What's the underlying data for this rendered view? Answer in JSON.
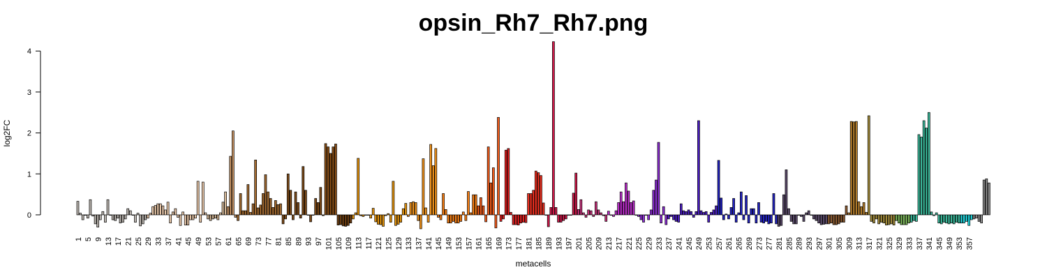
{
  "chart_data": {
    "type": "bar",
    "title": "opsin_Rh7_Rh7.png",
    "xlabel": "metacells",
    "ylabel": "log2FC",
    "ylim": [
      -0.35,
      4.25
    ],
    "yticks": [
      0,
      1,
      2,
      3,
      4
    ],
    "x_tick_labels": [
      "1",
      "5",
      "9",
      "13",
      "17",
      "21",
      "25",
      "29",
      "33",
      "37",
      "41",
      "45",
      "49",
      "53",
      "57",
      "61",
      "65",
      "69",
      "73",
      "77",
      "81",
      "85",
      "89",
      "93",
      "97",
      "101",
      "105",
      "109",
      "113",
      "117",
      "121",
      "125",
      "129",
      "133",
      "137",
      "141",
      "145",
      "149",
      "153",
      "157",
      "161",
      "165",
      "169",
      "173",
      "177",
      "181",
      "185",
      "189",
      "193",
      "197",
      "201",
      "205",
      "209",
      "213",
      "217",
      "221",
      "225",
      "229",
      "233",
      "237",
      "241",
      "245",
      "249",
      "253",
      "257",
      "261",
      "265",
      "269",
      "273",
      "277",
      "281",
      "285",
      "289",
      "293",
      "297",
      "301",
      "305",
      "309",
      "313",
      "317",
      "321",
      "325",
      "329",
      "333",
      "337",
      "341",
      "345",
      "349",
      "353",
      "357"
    ],
    "x_tick_step": 4,
    "values": [
      0.33,
      0.04,
      -0.12,
      0.0,
      -0.08,
      0.37,
      -0.03,
      -0.22,
      -0.3,
      -0.12,
      0.08,
      -0.18,
      0.37,
      0.0,
      -0.12,
      -0.14,
      -0.08,
      -0.2,
      -0.18,
      -0.1,
      0.15,
      0.1,
      0.0,
      -0.18,
      0.04,
      -0.27,
      -0.22,
      -0.12,
      -0.08,
      0.04,
      0.2,
      0.23,
      0.27,
      0.27,
      0.22,
      0.12,
      0.31,
      -0.2,
      0.07,
      0.15,
      -0.06,
      -0.26,
      0.07,
      -0.25,
      -0.25,
      -0.12,
      -0.12,
      -0.08,
      0.82,
      -0.18,
      0.8,
      0.05,
      -0.1,
      -0.14,
      -0.1,
      -0.08,
      -0.12,
      0.05,
      0.31,
      0.56,
      0.2,
      1.43,
      2.05,
      -0.06,
      -0.14,
      0.52,
      0.1,
      0.1,
      0.74,
      0.06,
      0.27,
      1.34,
      0.17,
      0.24,
      0.52,
      0.98,
      0.56,
      0.4,
      0.18,
      0.35,
      0.25,
      0.27,
      -0.22,
      -0.1,
      1.0,
      0.6,
      -0.12,
      0.56,
      0.3,
      -0.08,
      1.18,
      0.6,
      0.0,
      -0.17,
      0.0,
      0.4,
      0.3,
      0.67,
      -0.02,
      1.74,
      1.66,
      1.5,
      1.66,
      1.73,
      -0.25,
      -0.24,
      -0.27,
      -0.28,
      -0.26,
      -0.2,
      -0.1,
      0.05,
      1.38,
      -0.02,
      -0.04,
      0.0,
      0.0,
      -0.08,
      0.16,
      -0.17,
      -0.23,
      -0.24,
      -0.28,
      -0.02,
      0.03,
      -0.18,
      0.82,
      -0.26,
      -0.23,
      -0.18,
      0.15,
      0.28,
      -0.04,
      0.3,
      0.32,
      0.3,
      -0.14,
      -0.34,
      1.37,
      0.17,
      -0.18,
      1.72,
      1.2,
      1.62,
      -0.06,
      -0.12,
      0.52,
      0.13,
      -0.2,
      -0.2,
      -0.16,
      -0.2,
      -0.2,
      -0.16,
      0.07,
      -0.14,
      0.57,
      0.05,
      0.49,
      0.49,
      0.22,
      0.42,
      0.22,
      -0.17,
      1.66,
      0.78,
      1.15,
      -0.32,
      2.38,
      -0.16,
      -0.1,
      1.58,
      1.62,
      0.06,
      -0.24,
      -0.24,
      -0.25,
      -0.2,
      -0.18,
      -0.19,
      0.52,
      0.52,
      0.6,
      1.07,
      1.03,
      0.96,
      0.29,
      0.0,
      -0.29,
      0.18,
      4.23,
      0.18,
      -0.18,
      -0.18,
      -0.14,
      -0.1,
      0.0,
      0.0,
      0.53,
      1.02,
      0.13,
      0.37,
      0.05,
      -0.06,
      0.12,
      0.1,
      -0.04,
      0.32,
      0.12,
      0.05,
      -0.02,
      -0.16,
      0.09,
      0.0,
      -0.04,
      0.1,
      0.3,
      0.56,
      0.32,
      0.78,
      0.58,
      0.3,
      0.34,
      0.0,
      -0.04,
      -0.12,
      -0.18,
      0.0,
      -0.12,
      0.12,
      0.6,
      0.85,
      1.77,
      -0.2,
      0.2,
      -0.24,
      -0.1,
      -0.04,
      -0.12,
      -0.16,
      -0.18,
      0.27,
      0.1,
      0.08,
      0.12,
      0.08,
      -0.06,
      0.08,
      2.3,
      0.1,
      0.06,
      0.08,
      -0.18,
      0.06,
      0.12,
      0.22,
      1.33,
      0.41,
      -0.12,
      0.02,
      -0.1,
      0.18,
      0.4,
      -0.18,
      0.05,
      0.56,
      -0.12,
      0.47,
      -0.2,
      0.15,
      0.15,
      -0.2,
      0.3,
      -0.18,
      -0.2,
      -0.16,
      -0.22,
      -0.2,
      0.52,
      -0.22,
      -0.28,
      -0.26,
      0.49,
      1.1,
      0.15,
      -0.16,
      -0.22,
      -0.22,
      0.0,
      -0.04,
      -0.16,
      0.05,
      0.1,
      0.0,
      -0.1,
      -0.14,
      -0.2,
      -0.24,
      -0.23,
      -0.22,
      -0.22,
      -0.2,
      -0.24,
      -0.24,
      -0.22,
      -0.18,
      -0.18,
      0.22,
      0.05,
      2.28,
      2.27,
      2.28,
      0.32,
      0.2,
      0.3,
      0.06,
      2.42,
      -0.16,
      -0.2,
      -0.1,
      -0.22,
      -0.18,
      -0.2,
      -0.25,
      -0.24,
      -0.22,
      -0.25,
      -0.14,
      -0.2,
      -0.24,
      -0.24,
      -0.24,
      -0.2,
      -0.18,
      -0.14,
      -0.16,
      1.96,
      1.9,
      2.3,
      2.12,
      2.5,
      0.07,
      -0.02,
      0.05,
      -0.2,
      -0.22,
      -0.18,
      -0.2,
      -0.22,
      -0.2,
      -0.22,
      -0.18,
      -0.2,
      -0.2,
      -0.2,
      -0.16,
      -0.26,
      -0.12,
      -0.1,
      -0.08,
      -0.16,
      -0.2,
      0.85,
      0.88,
      0.78
    ],
    "color_groups": [
      {
        "start": 1,
        "end": 28,
        "color": "#b7b1ab"
      },
      {
        "start": 29,
        "end": 52,
        "color": "#e6c5a7"
      },
      {
        "start": 53,
        "end": 60,
        "color": "#d2b594"
      },
      {
        "start": 61,
        "end": 64,
        "color": "#c49264"
      },
      {
        "start": 65,
        "end": 82,
        "color": "#a0682e"
      },
      {
        "start": 83,
        "end": 99,
        "color": "#7c4a18"
      },
      {
        "start": 100,
        "end": 104,
        "color": "#8a4f16"
      },
      {
        "start": 105,
        "end": 110,
        "color": "#6a3c10"
      },
      {
        "start": 111,
        "end": 132,
        "color": "#e2920c"
      },
      {
        "start": 133,
        "end": 144,
        "color": "#f2931a"
      },
      {
        "start": 145,
        "end": 160,
        "color": "#f57d12"
      },
      {
        "start": 161,
        "end": 169,
        "color": "#f05a1a"
      },
      {
        "start": 170,
        "end": 180,
        "color": "#e02020"
      },
      {
        "start": 181,
        "end": 187,
        "color": "#f03020"
      },
      {
        "start": 188,
        "end": 200,
        "color": "#cc1848"
      },
      {
        "start": 201,
        "end": 212,
        "color": "#c23178"
      },
      {
        "start": 213,
        "end": 224,
        "color": "#b82cc8"
      },
      {
        "start": 225,
        "end": 236,
        "color": "#8a2cd2"
      },
      {
        "start": 237,
        "end": 256,
        "color": "#4a1dc0"
      },
      {
        "start": 257,
        "end": 280,
        "color": "#2222c0"
      },
      {
        "start": 281,
        "end": 300,
        "color": "#5a4a6a"
      },
      {
        "start": 301,
        "end": 308,
        "color": "#8b5a30"
      },
      {
        "start": 309,
        "end": 316,
        "color": "#b07a2a"
      },
      {
        "start": 317,
        "end": 327,
        "color": "#a08a3a"
      },
      {
        "start": 328,
        "end": 333,
        "color": "#7cb85a"
      },
      {
        "start": 334,
        "end": 353,
        "color": "#3ab89a"
      },
      {
        "start": 354,
        "end": 358,
        "color": "#20d8e0"
      }
    ]
  }
}
